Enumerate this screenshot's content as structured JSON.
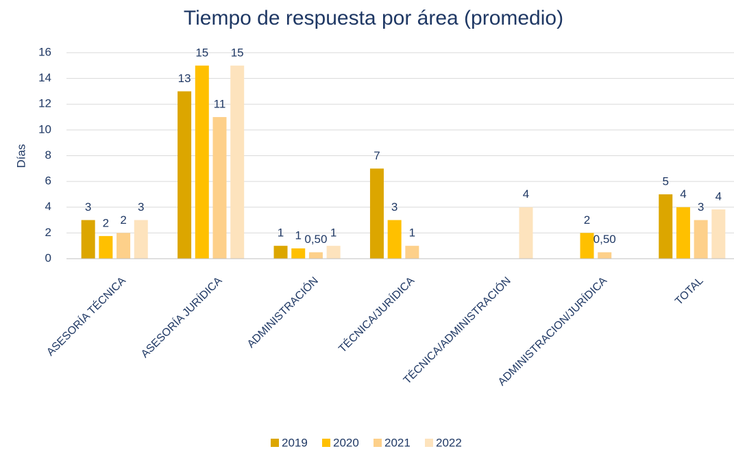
{
  "chart_data": {
    "type": "bar",
    "title": "Tiempo de respuesta por área (promedio)",
    "y_label": "Días",
    "categories": [
      "ASESORÍA TÉCNICA",
      "ASESORÍA JURÍDICA",
      "ADMINISTRACIÓN",
      "TÉCNICA/JURÍDICA",
      "TÉCNICA/ADMINISTRACIÓN",
      "ADMINISTRACION/JURÍDICA",
      "TOTAL"
    ],
    "series": [
      {
        "name": "2019",
        "color": "#dca600",
        "values": [
          3,
          13,
          1,
          7,
          null,
          null,
          5
        ],
        "value_labels": [
          "3",
          "13",
          "1",
          "7",
          null,
          null,
          "5"
        ]
      },
      {
        "name": "2020",
        "color": "#ffc000",
        "values": [
          1.76,
          15,
          0.8,
          3,
          null,
          2,
          4
        ],
        "value_labels": [
          "2",
          "15",
          "1",
          "3",
          null,
          "2",
          "4"
        ]
      },
      {
        "name": "2021",
        "color": "#fdd08a",
        "values": [
          2,
          11,
          0.5,
          1,
          null,
          0.5,
          3
        ],
        "value_labels": [
          "2",
          "11",
          "0,50",
          "1",
          null,
          "0,50",
          "3"
        ]
      },
      {
        "name": "2022",
        "color": "#fde3bd",
        "values": [
          3,
          15,
          1,
          null,
          4,
          null,
          3.83
        ],
        "value_labels": [
          "3",
          "15",
          "1",
          null,
          "4",
          null,
          "4"
        ]
      }
    ],
    "ylim": [
      0,
      16
    ],
    "yticks": [
      0,
      2,
      4,
      6,
      8,
      10,
      12,
      14,
      16
    ],
    "grid": true,
    "legend": "bottom"
  }
}
